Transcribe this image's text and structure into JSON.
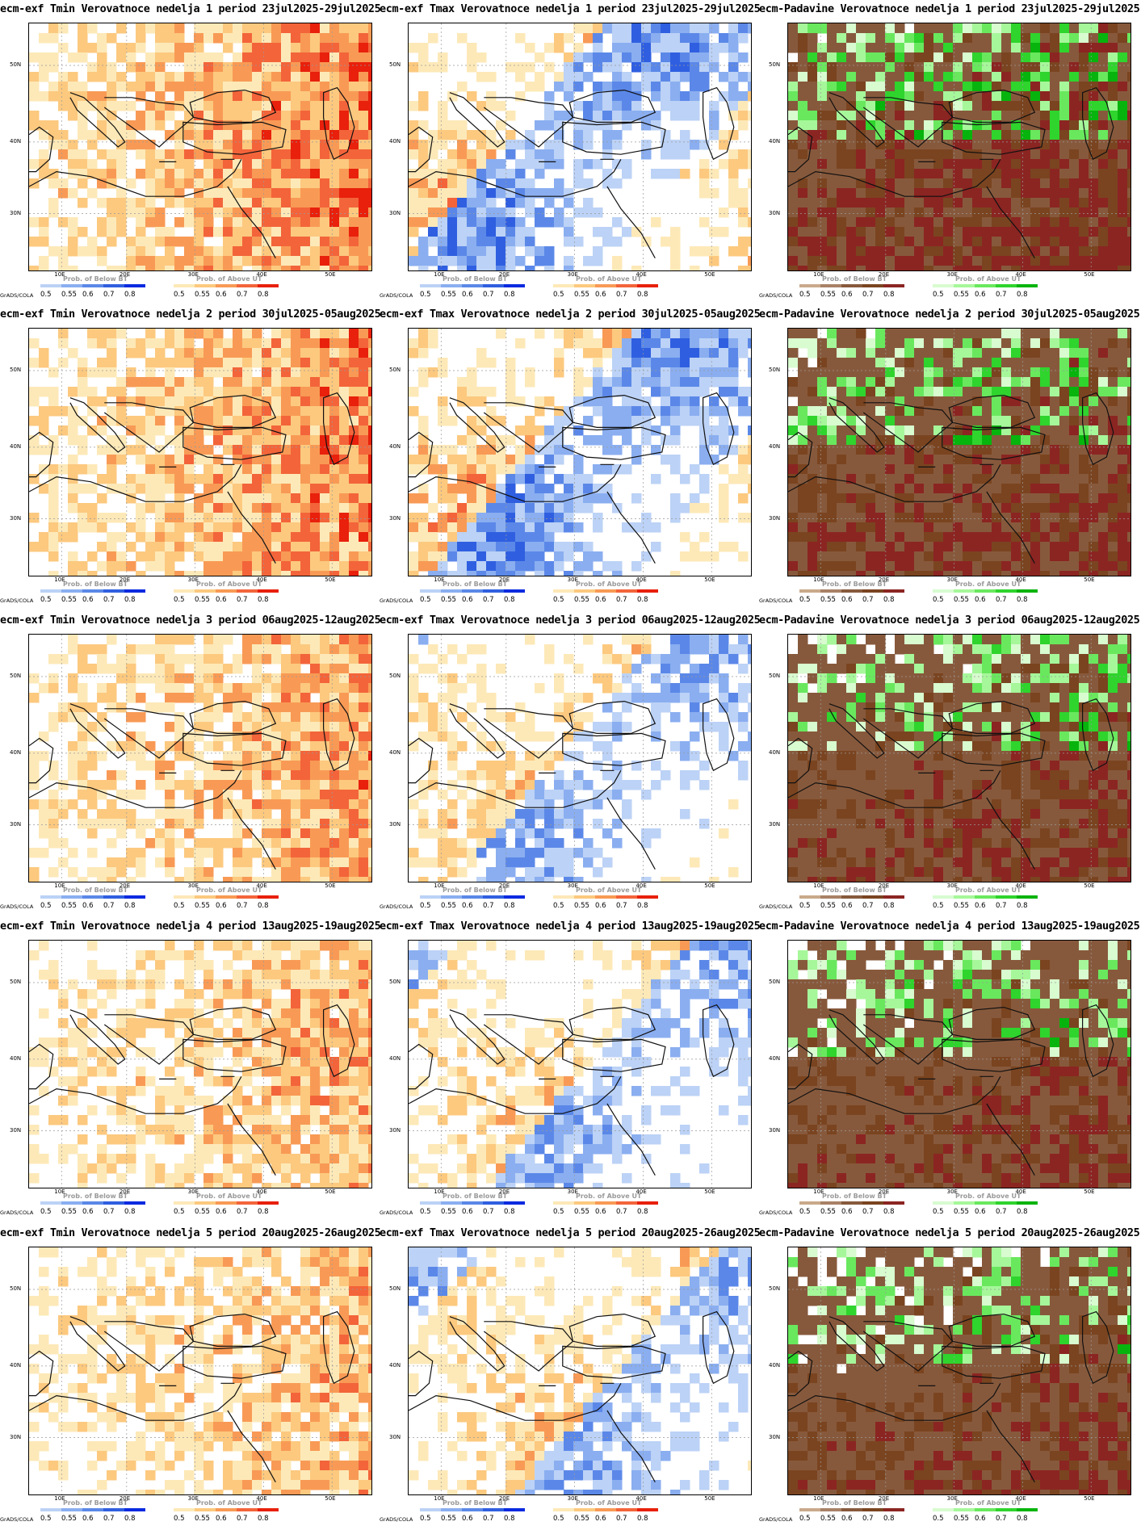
{
  "geo": {
    "lat_ticks": [
      "50N",
      "40N",
      "30N"
    ],
    "lon_ticks": [
      "10E",
      "20E",
      "30E",
      "40E",
      "50E"
    ],
    "software_label": "GrADS/COLA"
  },
  "legends": {
    "below_title": "Prob. of Below BT",
    "above_title": "Prob. of Above UT",
    "ticks": [
      "0.5",
      "0.55",
      "0.6",
      "0.7",
      "0.8"
    ],
    "cold_colors": [
      "#bcd2f6",
      "#8aaef0",
      "#5b88e8",
      "#2f5fe0",
      "#0a2ae0"
    ],
    "warm_colors": [
      "#fde9b8",
      "#fcc97f",
      "#f89a55",
      "#f3643a",
      "#e8200c"
    ],
    "dry_colors": [
      "#c9a98b",
      "#a88166",
      "#87593c",
      "#7a4420",
      "#8b2522"
    ],
    "wet_colors": [
      "#d8fbd0",
      "#a6f79a",
      "#69e85e",
      "#2fd42d",
      "#07b40d"
    ]
  },
  "rows": [
    {
      "tmin_title": "ecm-exf Tmin Verovatnoce nedelja 1 period 23jul2025-29jul2025",
      "tmax_title": "ecm-exf Tmax Verovatnoce nedelja 1 period 23jul2025-29jul2025",
      "precip_title": "ecm-Padavine Verovatnoce nedelja 1 period 23jul2025-29jul2025",
      "tmin_level": 0.82,
      "tmax_level": 0.7,
      "precip_level": 0.85
    },
    {
      "tmin_title": "ecm-exf Tmin Verovatnoce nedelja 2 period 30jul2025-05aug2025",
      "tmax_title": "ecm-exf Tmax Verovatnoce nedelja 2 period 30jul2025-05aug2025",
      "precip_title": "ecm-Padavine Verovatnoce nedelja 2 period 30jul2025-05aug2025",
      "tmin_level": 0.78,
      "tmax_level": 0.72,
      "precip_level": 0.8
    },
    {
      "tmin_title": "ecm-exf Tmin Verovatnoce nedelja 3 period 06aug2025-12aug2025",
      "tmax_title": "ecm-exf Tmax Verovatnoce nedelja 3 period 06aug2025-12aug2025",
      "precip_title": "ecm-Padavine Verovatnoce nedelja 3 period 06aug2025-12aug2025",
      "tmin_level": 0.7,
      "tmax_level": 0.6,
      "precip_level": 0.75
    },
    {
      "tmin_title": "ecm-exf Tmin Verovatnoce nedelja 4 period 13aug2025-19aug2025",
      "tmax_title": "ecm-exf Tmax Verovatnoce nedelja 4 period 13aug2025-19aug2025",
      "precip_title": "ecm-Padavine Verovatnoce nedelja 4 period 13aug2025-19aug2025",
      "tmin_level": 0.65,
      "tmax_level": 0.58,
      "precip_level": 0.72
    },
    {
      "tmin_title": "ecm-exf Tmin Verovatnoce nedelja 5 period 20aug2025-26aug2025",
      "tmax_title": "ecm-exf Tmax Verovatnoce nedelja 5 period 20aug2025-26aug2025",
      "precip_title": "ecm-Padavine Verovatnoce nedelja 5 period 20aug2025-26aug2025",
      "tmin_level": 0.62,
      "tmax_level": 0.58,
      "precip_level": 0.72
    }
  ]
}
